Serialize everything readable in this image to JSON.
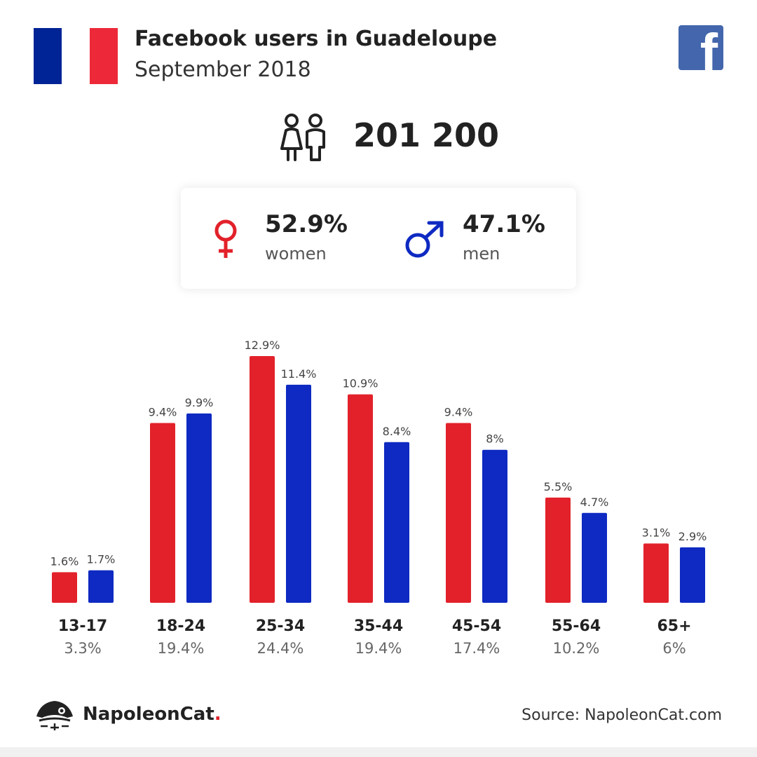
{
  "header": {
    "title": "Facebook users in Guadeloupe",
    "subtitle": "September 2018"
  },
  "flag": {
    "colors": [
      "#002395",
      "#ffffff",
      "#ed2939"
    ]
  },
  "icons": {
    "flag": "france-flag-icon",
    "facebook": "facebook-logo-icon",
    "users": "users-icon",
    "female": "female-symbol-icon",
    "male": "male-symbol-icon"
  },
  "total_users": "201 200",
  "gender": {
    "women": {
      "pct": "52.9%",
      "label": "women",
      "color": "#e2212a"
    },
    "men": {
      "pct": "47.1%",
      "label": "men",
      "color": "#0e2ac2"
    }
  },
  "chart_data": {
    "type": "bar",
    "categories": [
      "13-17",
      "18-24",
      "25-34",
      "35-44",
      "45-54",
      "55-64",
      "65+"
    ],
    "category_totals": [
      "3.3%",
      "19.4%",
      "24.4%",
      "19.4%",
      "17.4%",
      "10.2%",
      "6%"
    ],
    "series": [
      {
        "color": "#e2212a",
        "values": [
          1.6,
          9.4,
          12.9,
          10.9,
          9.4,
          5.5,
          3.1
        ],
        "labels": [
          "1.6%",
          "9.4%",
          "12.9%",
          "10.9%",
          "9.4%",
          "5.5%",
          "3.1%"
        ]
      },
      {
        "color": "#0e2ac2",
        "values": [
          1.7,
          9.9,
          11.4,
          8.4,
          8,
          4.7,
          2.9
        ],
        "labels": [
          "1.7%",
          "9.9%",
          "11.4%",
          "8.4%",
          "8%",
          "4.7%",
          "2.9%"
        ]
      }
    ],
    "title": "",
    "xlabel": "",
    "ylabel": "",
    "ylim": [
      0,
      12.9
    ],
    "grid": false
  },
  "footer": {
    "brand": "NapoleonCat",
    "brand_dot": ".",
    "source": "Source: NapoleonCat.com"
  }
}
